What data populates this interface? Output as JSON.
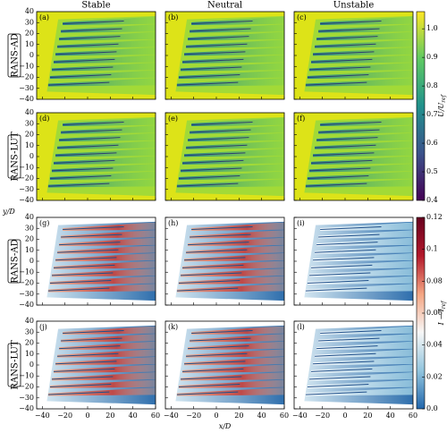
{
  "chart_data": {
    "type": "contour",
    "column_titles": [
      "Stable",
      "Neutral",
      "Unstable"
    ],
    "row_labels": [
      "RANS-AD",
      "RANS-LUT",
      "RANS-AD",
      "RANS-LUT"
    ],
    "panel_labels": [
      "(a)",
      "(b)",
      "(c)",
      "(d)",
      "(e)",
      "(f)",
      "(g)",
      "(h)",
      "(i)",
      "(j)",
      "(k)",
      "(l)"
    ],
    "xlabel": "x/D",
    "ylabel": "y/D",
    "xlim": [
      -45,
      60
    ],
    "xticks": [
      {
        "value": -40,
        "label": "−40"
      },
      {
        "value": -20,
        "label": "−20"
      },
      0,
      20,
      40,
      60
    ],
    "ylim": [
      -40,
      40
    ],
    "yticks": [
      {
        "value": -40,
        "label": "−40"
      },
      {
        "value": -30,
        "label": "−30"
      },
      {
        "value": -20,
        "label": "−20"
      },
      {
        "value": -10,
        "label": "−10"
      },
      0,
      10,
      20,
      30,
      40
    ],
    "colorbars": [
      {
        "label": "U/U",
        "label_sub": "ref",
        "lim": [
          0.4,
          1.06
        ],
        "ticks": [
          0.4,
          0.5,
          0.6,
          0.7,
          0.8,
          0.9,
          {
            "value": 1,
            "label": "1.0"
          }
        ],
        "colors": [
          "#440154",
          "#3b528b",
          "#21918c",
          "#5ec962",
          "#fde725"
        ]
      },
      {
        "label": "I − I",
        "label_sub": "ref",
        "lim": [
          0,
          0.12
        ],
        "ticks": [
          {
            "value": 0,
            "label": "0.0"
          },
          0.02,
          0.04,
          0.06,
          0.08,
          0.1,
          0.12
        ],
        "colors": [
          "#2166ac",
          "#92c5de",
          "#f7f7f7",
          "#f4a582",
          "#b2182b",
          "#67001f"
        ]
      }
    ]
  }
}
